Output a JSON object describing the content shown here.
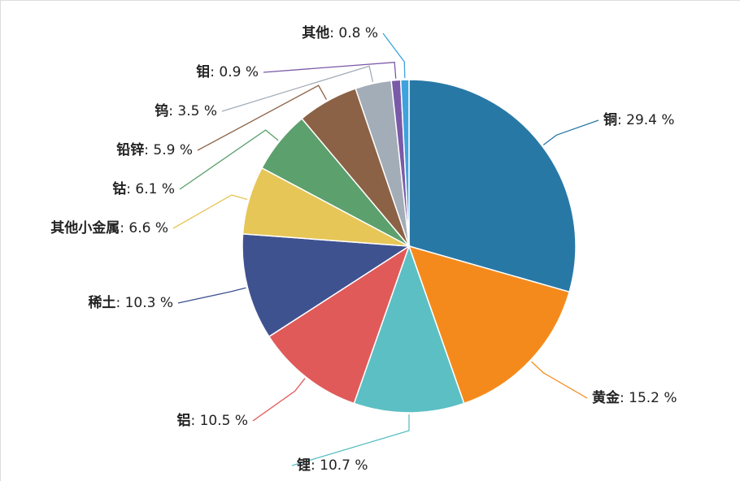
{
  "chart_data": {
    "type": "pie",
    "categories": [
      "铜",
      "黄金",
      "锂",
      "铝",
      "稀土",
      "其他小金属",
      "钴",
      "铅锌",
      "钨",
      "钼",
      "其他"
    ],
    "values": [
      29.4,
      15.2,
      10.7,
      10.5,
      10.3,
      6.6,
      6.1,
      5.9,
      3.5,
      0.9,
      0.8
    ],
    "value_labels": [
      "29.4 %",
      "15.2 %",
      "10.7 %",
      "10.5 %",
      "10.3 %",
      "6.6 %",
      "6.1 %",
      "5.9 %",
      "3.5 %",
      "0.9 %",
      "0.8 %"
    ],
    "separator": ": ",
    "colors": [
      "#2878a6",
      "#f58a1c",
      "#5cbfc3",
      "#e05a5a",
      "#3f5290",
      "#e6c657",
      "#5ca06d",
      "#8b6245",
      "#a3adb8",
      "#7a5aa8",
      "#3ea3dd"
    ]
  }
}
